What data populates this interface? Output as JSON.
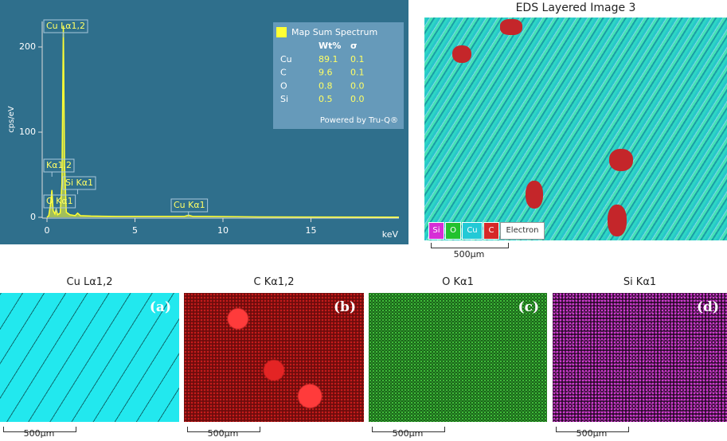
{
  "chart_data": {
    "type": "line",
    "x_label": "keV",
    "y_label": "cps/eV",
    "x": [
      0,
      0.1,
      0.2,
      0.28,
      0.35,
      0.45,
      0.52,
      0.6,
      0.75,
      0.85,
      0.93,
      1.0,
      1.1,
      1.3,
      1.6,
      1.74,
      1.9,
      2.5,
      4,
      6,
      7.8,
      8.04,
      8.3,
      9,
      12,
      15,
      20
    ],
    "series": [
      {
        "name": "Map Sum Spectrum",
        "color": "#ffff33",
        "values": [
          0,
          2,
          15,
          32,
          8,
          4,
          10,
          3,
          5,
          40,
          225,
          60,
          6,
          3,
          2,
          5,
          2,
          1.5,
          1,
          1,
          1,
          2.5,
          1,
          1,
          0.5,
          0.3,
          0.2
        ]
      }
    ],
    "xlim": [
      0,
      20
    ],
    "xticks": [
      0,
      5,
      10,
      15
    ],
    "ylim": [
      0,
      230
    ],
    "yticks": [
      0,
      100,
      200
    ],
    "annotations": [
      {
        "text": "Cu Lα1,2",
        "x": 0.93
      },
      {
        "text": "Kα1,2",
        "x": 0.28
      },
      {
        "text": "Si Kα1",
        "x": 1.74
      },
      {
        "text": "O Kα1",
        "x": 0.52
      },
      {
        "text": "Cu Kα1",
        "x": 8.04
      }
    ],
    "legend_table": {
      "header": [
        "Wt%",
        "σ"
      ],
      "rows": [
        [
          "Cu",
          "89.1",
          "0.1"
        ],
        [
          "C",
          "9.6",
          "0.1"
        ],
        [
          "O",
          "0.8",
          "0.0"
        ],
        [
          "Si",
          "0.5",
          "0.0"
        ]
      ],
      "footer": "Powered by Tru-Q®"
    }
  },
  "layered_image": {
    "title": "EDS Layered Image 3",
    "chips": [
      "Si",
      "O",
      "Cu",
      "C"
    ],
    "electron": "Electron",
    "scale": "500µm"
  },
  "maps": [
    {
      "title": "Cu Lα1,2",
      "letter": "(a)",
      "scale": "500µm"
    },
    {
      "title": "C Kα1,2",
      "letter": "(b)",
      "scale": "500µm"
    },
    {
      "title": "O Kα1",
      "letter": "(c)",
      "scale": "500µm"
    },
    {
      "title": "Si Kα1",
      "letter": "(d)",
      "scale": "500µm"
    }
  ]
}
